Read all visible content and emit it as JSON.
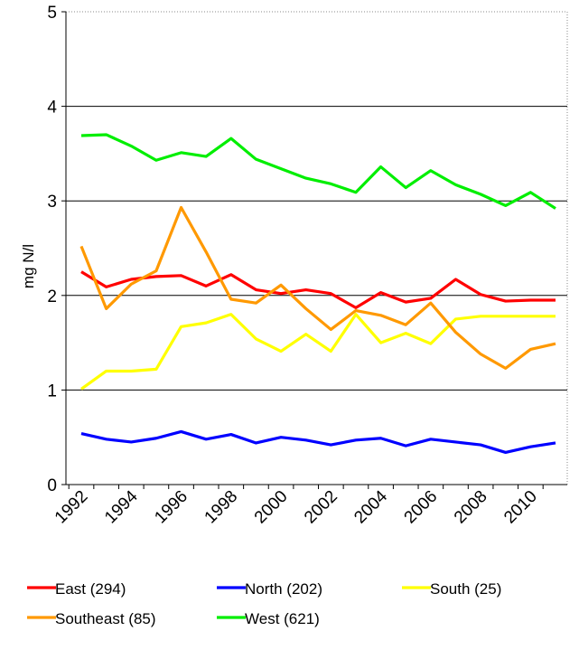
{
  "chart_data": {
    "type": "line",
    "title": "",
    "xlabel": "",
    "ylabel": "mg N/l",
    "ylim": [
      0,
      5
    ],
    "yticks": [
      0,
      1,
      2,
      3,
      4,
      5
    ],
    "x": [
      1992,
      1993,
      1994,
      1995,
      1996,
      1997,
      1998,
      1999,
      2000,
      2001,
      2002,
      2003,
      2004,
      2005,
      2006,
      2007,
      2008,
      2009,
      2010,
      2011
    ],
    "xtick_labels": [
      "1992",
      "1994",
      "1996",
      "1998",
      "2000",
      "2002",
      "2004",
      "2006",
      "2008",
      "2010"
    ],
    "grid": true,
    "legend_position": "bottom",
    "series": [
      {
        "name": "East (294)",
        "color": "#ff0000",
        "values": [
          2.25,
          2.09,
          2.17,
          2.2,
          2.21,
          2.1,
          2.22,
          2.06,
          2.02,
          2.06,
          2.02,
          1.87,
          2.03,
          1.93,
          1.97,
          2.17,
          2.01,
          1.94,
          1.95,
          1.95
        ]
      },
      {
        "name": "North (202)",
        "color": "#0000ff",
        "values": [
          0.54,
          0.48,
          0.45,
          0.49,
          0.56,
          0.48,
          0.53,
          0.44,
          0.5,
          0.47,
          0.42,
          0.47,
          0.49,
          0.41,
          0.48,
          0.45,
          0.42,
          0.34,
          0.4,
          0.44
        ]
      },
      {
        "name": "South (25)",
        "color": "#ffff00",
        "values": [
          1.01,
          1.2,
          1.2,
          1.22,
          1.67,
          1.71,
          1.8,
          1.54,
          1.41,
          1.59,
          1.41,
          1.8,
          1.5,
          1.6,
          1.49,
          1.75,
          1.78,
          1.78,
          1.78,
          1.78
        ]
      },
      {
        "name": "Southeast (85)",
        "color": "#ff9900",
        "values": [
          2.52,
          1.86,
          2.12,
          2.26,
          2.93,
          2.46,
          1.96,
          1.92,
          2.11,
          1.86,
          1.64,
          1.84,
          1.79,
          1.69,
          1.92,
          1.61,
          1.38,
          1.23,
          1.43,
          1.49
        ]
      },
      {
        "name": "West (621)",
        "color": "#00ee00",
        "values": [
          3.69,
          3.7,
          3.58,
          3.43,
          3.51,
          3.47,
          3.66,
          3.44,
          3.34,
          3.24,
          3.18,
          3.09,
          3.36,
          3.14,
          3.32,
          3.17,
          3.07,
          2.95,
          3.09,
          2.92
        ]
      }
    ]
  }
}
